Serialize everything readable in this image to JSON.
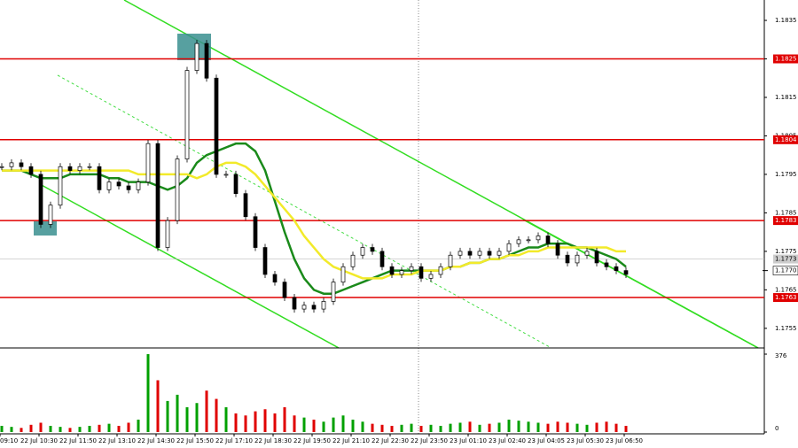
{
  "chart_data": {
    "type": "candlestick",
    "ylim": [
      1.17499,
      1.18403
    ],
    "yticks": [
      1.1755,
      1.1765,
      1.1775,
      1.1785,
      1.1795,
      1.1805,
      1.1815,
      1.1825,
      1.1835
    ],
    "levels": [
      1.1825,
      1.1804,
      1.1783,
      1.1763
    ],
    "level_color": "#e00000",
    "bid": 1.1773,
    "last": {
      "value": 1.177,
      "label": "1.1770"
    },
    "time_labels": [
      "09:10",
      "22 Jul 10:30",
      "22 Jul 11:50",
      "22 Jul 13:10",
      "22 Jul 14:30",
      "22 Jul 15:50",
      "22 Jul 17:10",
      "22 Jul 18:30",
      "22 Jul 19:50",
      "22 Jul 21:10",
      "22 Jul 22:30",
      "22 Jul 23:50",
      "23 Jul 01:10",
      "23 Jul 02:40",
      "23 Jul 04:05",
      "23 Jul 05:30",
      "23 Jul 06:50"
    ],
    "close": [
      1.1797,
      1.1798,
      1.1797,
      1.1795,
      1.1782,
      1.1787,
      1.1797,
      1.1796,
      1.1797,
      1.1797,
      1.1791,
      1.1793,
      1.1792,
      1.1791,
      1.1793,
      1.1803,
      1.1776,
      1.1783,
      1.1799,
      1.1822,
      1.1829,
      1.182,
      1.1795,
      1.1795,
      1.179,
      1.1784,
      1.1776,
      1.1769,
      1.1767,
      1.1763,
      1.176,
      1.1761,
      1.176,
      1.1762,
      1.1767,
      1.1771,
      1.1774,
      1.1776,
      1.1775,
      1.1771,
      1.1769,
      1.177,
      1.1771,
      1.1768,
      1.1769,
      1.1771,
      1.1774,
      1.1775,
      1.1774,
      1.1775,
      1.1774,
      1.1775,
      1.1777,
      1.1778,
      1.1778,
      1.1779,
      1.1777,
      1.1774,
      1.1772,
      1.1774,
      1.1775,
      1.1772,
      1.1771,
      1.177,
      1.1769
    ],
    "series": [
      {
        "color": "#1a8a1a",
        "values": [
          1.1796,
          1.1796,
          1.1796,
          1.1795,
          1.1794,
          1.1794,
          1.1794,
          1.1795,
          1.1795,
          1.1795,
          1.1795,
          1.1794,
          1.1794,
          1.1793,
          1.1793,
          1.1793,
          1.1792,
          1.1791,
          1.1792,
          1.1794,
          1.1798,
          1.18,
          1.1801,
          1.1802,
          1.1803,
          1.1803,
          1.1801,
          1.1796,
          1.1788,
          1.178,
          1.1773,
          1.1768,
          1.1765,
          1.1764,
          1.1764,
          1.1765,
          1.1766,
          1.1767,
          1.1768,
          1.1769,
          1.177,
          1.177,
          1.177,
          1.177,
          1.177,
          1.177,
          1.1771,
          1.1771,
          1.1772,
          1.1772,
          1.1773,
          1.1773,
          1.1774,
          1.1775,
          1.1776,
          1.1776,
          1.1777,
          1.1777,
          1.1777,
          1.1776,
          1.1776,
          1.1775,
          1.1774,
          1.1773,
          1.1771
        ]
      },
      {
        "color": "#f2ea2a",
        "values": [
          1.1796,
          1.1796,
          1.1796,
          1.1796,
          1.1796,
          1.1796,
          1.1796,
          1.1796,
          1.1796,
          1.1796,
          1.1796,
          1.1796,
          1.1796,
          1.1796,
          1.1795,
          1.1795,
          1.1795,
          1.1795,
          1.1795,
          1.1795,
          1.1794,
          1.1795,
          1.1797,
          1.1798,
          1.1798,
          1.1797,
          1.1795,
          1.1792,
          1.1789,
          1.1786,
          1.1783,
          1.1779,
          1.1776,
          1.1773,
          1.1771,
          1.177,
          1.1769,
          1.1768,
          1.1768,
          1.1768,
          1.1769,
          1.1769,
          1.1769,
          1.177,
          1.177,
          1.177,
          1.1771,
          1.1771,
          1.1772,
          1.1772,
          1.1773,
          1.1773,
          1.1774,
          1.1774,
          1.1775,
          1.1775,
          1.1776,
          1.1776,
          1.1776,
          1.1776,
          1.1776,
          1.1776,
          1.1776,
          1.1775,
          1.1775
        ]
      }
    ],
    "volume": {
      "ylim": [
        0,
        376
      ],
      "yticks": [
        0,
        376
      ],
      "color": "#00a000",
      "down_color": "#e00000",
      "values": [
        30,
        25,
        20,
        35,
        45,
        30,
        25,
        20,
        25,
        30,
        35,
        40,
        30,
        45,
        60,
        376,
        250,
        150,
        180,
        120,
        140,
        200,
        160,
        120,
        90,
        80,
        100,
        110,
        90,
        120,
        80,
        70,
        60,
        50,
        70,
        80,
        60,
        50,
        40,
        35,
        30,
        35,
        40,
        30,
        35,
        30,
        40,
        45,
        50,
        35,
        40,
        45,
        60,
        55,
        50,
        45,
        40,
        50,
        45,
        40,
        35,
        45,
        50,
        40,
        30
      ]
    }
  }
}
